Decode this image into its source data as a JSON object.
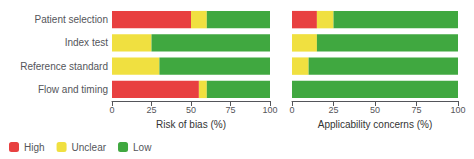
{
  "chart_data": [
    {
      "type": "bar",
      "orientation": "horizontal",
      "stacked": true,
      "categories": [
        "Patient selection",
        "Index test",
        "Reference standard",
        "Flow and timing"
      ],
      "series": [
        {
          "name": "High",
          "color": "#e84040",
          "values": [
            50,
            0,
            0,
            55
          ]
        },
        {
          "name": "Unclear",
          "color": "#f0e040",
          "values": [
            10,
            25,
            30,
            5
          ]
        },
        {
          "name": "Low",
          "color": "#40a840",
          "values": [
            40,
            75,
            70,
            40
          ]
        }
      ],
      "xlabel": "Risk of bias (%)",
      "xlim": [
        0,
        100
      ],
      "xticks": [
        0,
        25,
        50,
        75,
        100
      ],
      "grid": false,
      "legend": "lower left"
    },
    {
      "type": "bar",
      "orientation": "horizontal",
      "stacked": true,
      "categories": [
        "Patient selection",
        "Index test",
        "Reference standard",
        "Flow and timing"
      ],
      "series": [
        {
          "name": "High",
          "color": "#e84040",
          "values": [
            15,
            0,
            0,
            0
          ]
        },
        {
          "name": "Unclear",
          "color": "#f0e040",
          "values": [
            10,
            15,
            10,
            0
          ]
        },
        {
          "name": "Low",
          "color": "#40a840",
          "values": [
            75,
            85,
            90,
            100
          ]
        }
      ],
      "xlabel": "Applicability concerns (%)",
      "xlim": [
        0,
        100
      ],
      "xticks": [
        0,
        25,
        50,
        75,
        100
      ],
      "grid": false,
      "tick_labels": "x"
    }
  ]
}
